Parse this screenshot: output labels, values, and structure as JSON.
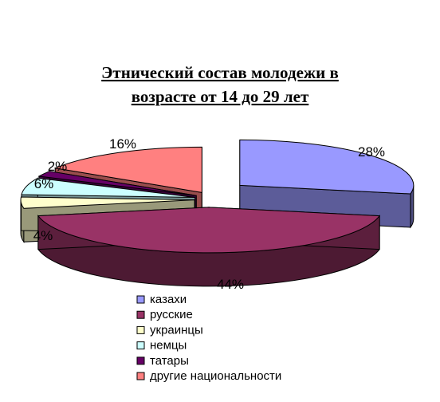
{
  "chart_data": {
    "type": "pie",
    "title_lines": [
      "Этнический состав молодежи в",
      "возрасте от 14 до 29 лет"
    ],
    "categories": [
      "казахи",
      "русские",
      "украинцы",
      "немцы",
      "татары",
      "другие национальности"
    ],
    "values": [
      28,
      44,
      4,
      6,
      2,
      16
    ],
    "value_labels": [
      "28%",
      "44%",
      "4%",
      "6%",
      "2%",
      "16%"
    ],
    "colors": [
      "#9999ff",
      "#993366",
      "#ffffcc",
      "#ccffff",
      "#660066",
      "#ff8080"
    ],
    "legend_position": "bottom",
    "style": "3d-exploded"
  }
}
